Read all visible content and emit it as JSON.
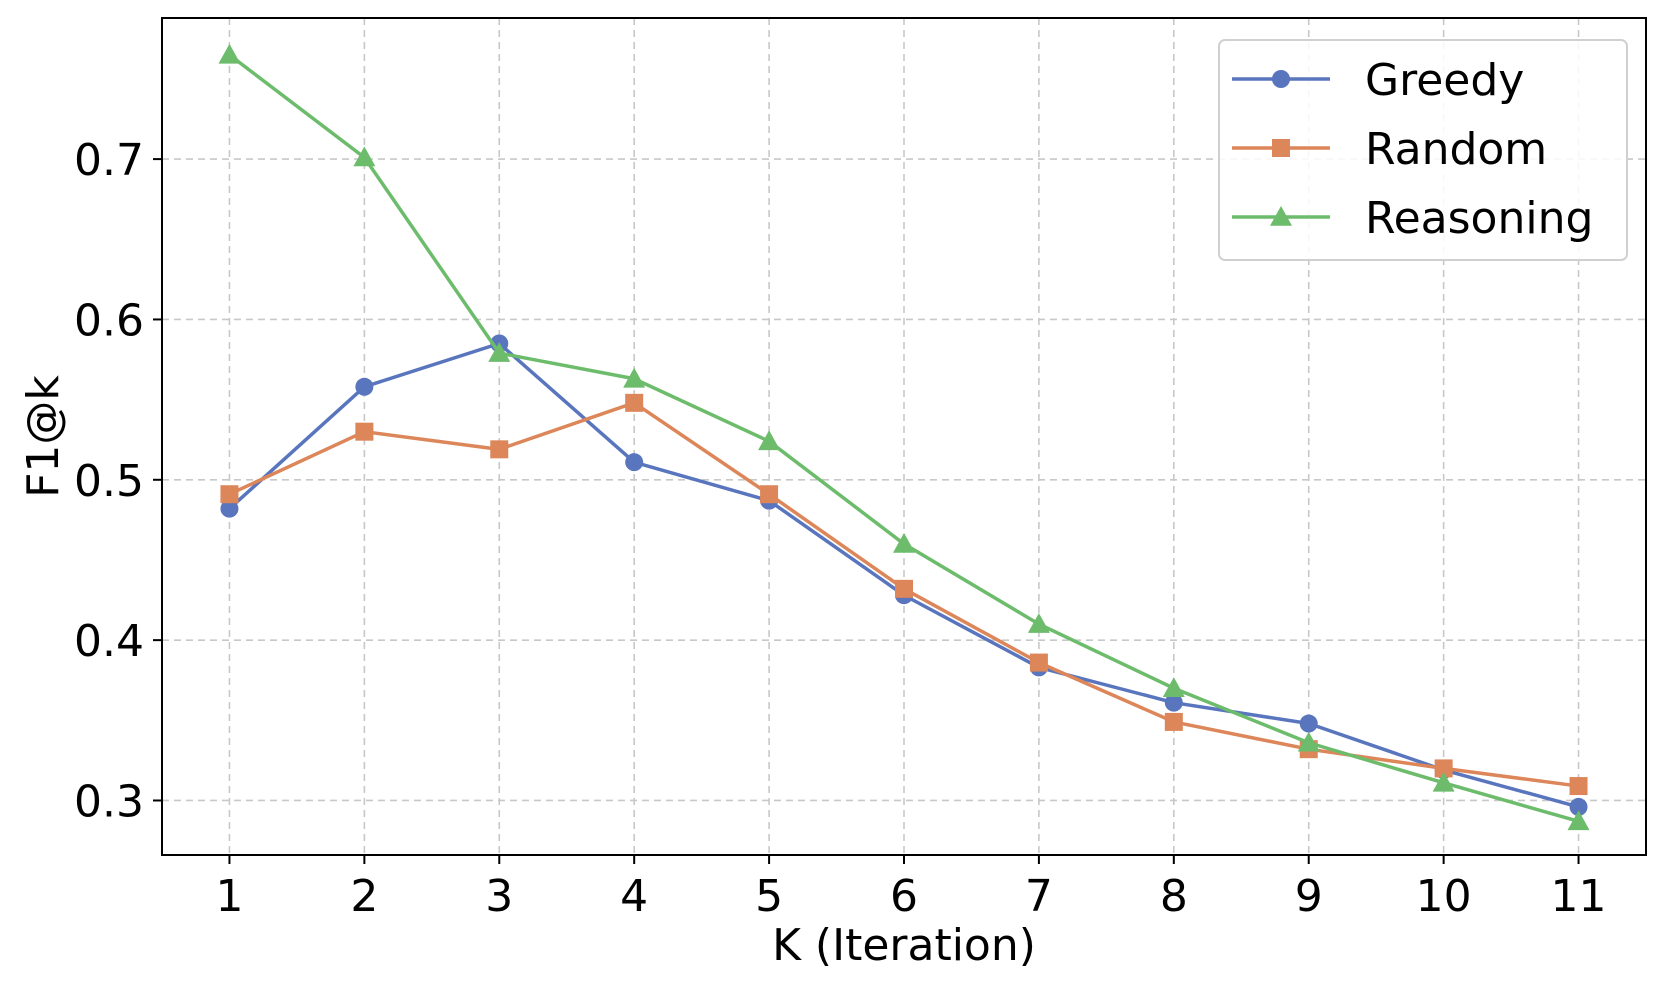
{
  "chart_data": {
    "type": "line",
    "title": "",
    "xlabel": "K (Iteration)",
    "ylabel": "F1@k",
    "x": [
      1,
      2,
      3,
      4,
      5,
      6,
      7,
      8,
      9,
      10,
      11
    ],
    "xlim": [
      0.5,
      11.5
    ],
    "ylim": [
      0.266,
      0.788
    ],
    "yticks": [
      0.3,
      0.4,
      0.5,
      0.6,
      0.7
    ],
    "ytick_labels": [
      "0.3",
      "0.4",
      "0.5",
      "0.6",
      "0.7"
    ],
    "xtick_labels": [
      "1",
      "2",
      "3",
      "4",
      "5",
      "6",
      "7",
      "8",
      "9",
      "10",
      "11"
    ],
    "grid": true,
    "legend_position": "top-right",
    "series": [
      {
        "name": "Greedy",
        "color": "#5875be",
        "marker": "circle",
        "values": [
          0.482,
          0.558,
          0.585,
          0.511,
          0.487,
          0.428,
          0.383,
          0.361,
          0.348,
          0.319,
          0.296
        ]
      },
      {
        "name": "Random",
        "color": "#dc8659",
        "marker": "square",
        "values": [
          0.491,
          0.53,
          0.519,
          0.548,
          0.491,
          0.432,
          0.386,
          0.349,
          0.332,
          0.32,
          0.309
        ]
      },
      {
        "name": "Reasoning",
        "color": "#6cbc6c",
        "marker": "triangle",
        "values": [
          0.765,
          0.701,
          0.579,
          0.563,
          0.524,
          0.46,
          0.41,
          0.37,
          0.336,
          0.311,
          0.287
        ]
      }
    ]
  }
}
